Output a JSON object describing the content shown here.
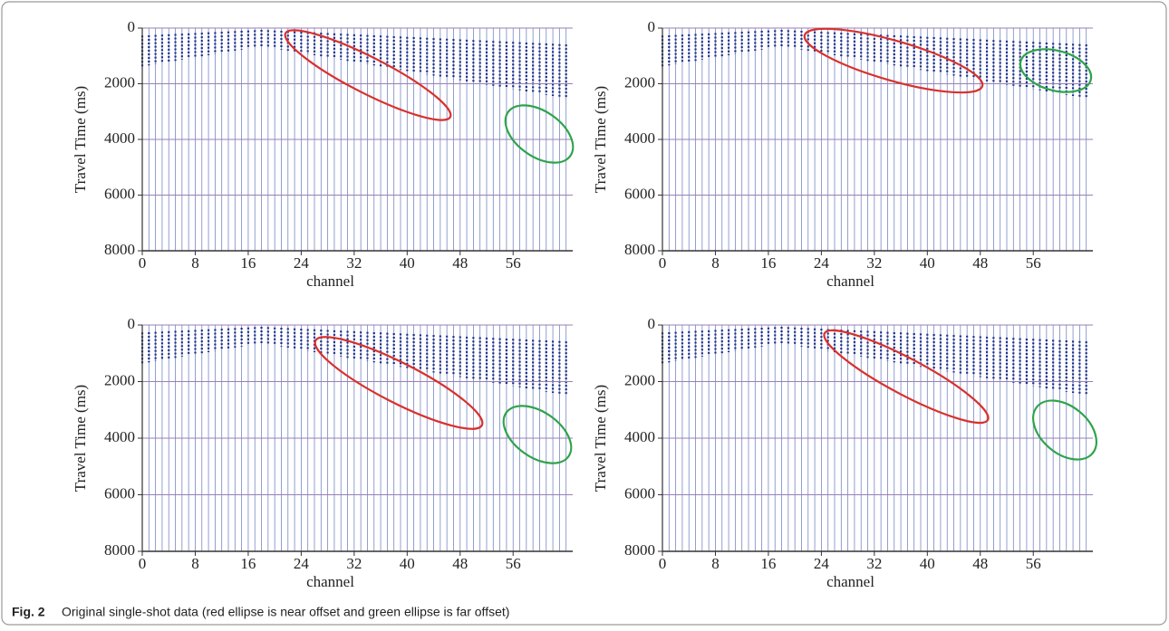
{
  "chart_data": [
    {
      "type": "seismic",
      "x_label": "channel",
      "y_label": "Travel Time (ms)",
      "xlim": [
        0,
        65
      ],
      "xticks": [
        0,
        8,
        16,
        24,
        32,
        40,
        48,
        56
      ],
      "ylim": [
        0,
        8000
      ],
      "yticks": [
        0,
        2000,
        4000,
        6000,
        8000
      ],
      "y_inverted": true,
      "grid": true,
      "grid_color": "#9a7fb8",
      "trace_color": "#4a5fb0"
    },
    {
      "type": "seismic",
      "x_label": "channel",
      "y_label": "Travel Time (ms)",
      "xlim": [
        0,
        65
      ],
      "xticks": [
        0,
        8,
        16,
        24,
        32,
        40,
        48,
        56
      ],
      "ylim": [
        0,
        8000
      ],
      "yticks": [
        0,
        2000,
        4000,
        6000,
        8000
      ],
      "y_inverted": true,
      "grid": true,
      "grid_color": "#9a7fb8",
      "trace_color": "#4a5fb0"
    },
    {
      "type": "seismic",
      "x_label": "channel",
      "y_label": "Travel Time (ms)",
      "xlim": [
        0,
        65
      ],
      "xticks": [
        0,
        8,
        16,
        24,
        32,
        40,
        48,
        56
      ],
      "ylim": [
        0,
        8000
      ],
      "yticks": [
        0,
        2000,
        4000,
        6000,
        8000
      ],
      "y_inverted": true,
      "grid": true,
      "grid_color": "#9a7fb8",
      "trace_color": "#4a5fb0"
    },
    {
      "type": "seismic",
      "x_label": "channel",
      "y_label": "Travel Time (ms)",
      "xlim": [
        0,
        65
      ],
      "xticks": [
        0,
        8,
        16,
        24,
        32,
        40,
        48,
        56
      ],
      "ylim": [
        0,
        8000
      ],
      "yticks": [
        0,
        2000,
        4000,
        6000,
        8000
      ],
      "y_inverted": true,
      "grid": true,
      "grid_color": "#9a7fb8",
      "trace_color": "#4a5fb0"
    }
  ],
  "caption": {
    "label": "Fig. 2",
    "text": "Original single-shot data (red ellipse is near offset and green ellipse is far offset)"
  }
}
